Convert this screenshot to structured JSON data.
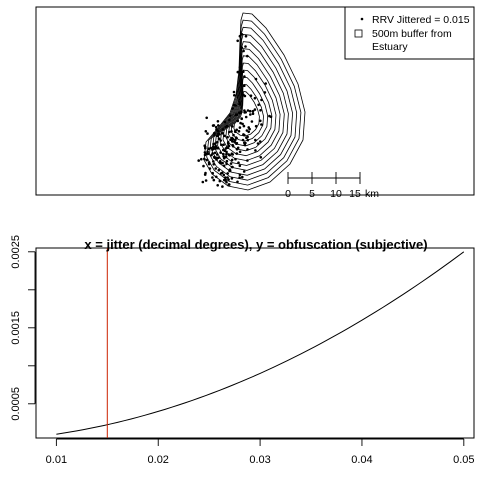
{
  "chart_data": [
    {
      "type": "scatter",
      "legend": {
        "position": "top-right",
        "entries": [
          {
            "symbol": "point",
            "label": "RRV Jittered = 0.015"
          },
          {
            "symbol": "square",
            "label_lines": [
              "500m buffer from",
              "Estuary"
            ]
          }
        ]
      },
      "scalebar": {
        "ticks": [
          "0",
          "5",
          "10",
          "15"
        ],
        "unit": "km"
      },
      "axes_shown": false
    },
    {
      "type": "line",
      "title": "x = jitter (decimal degrees), y = obfuscation (subjective)",
      "xlabel": "",
      "ylabel": "",
      "xlim": [
        0.008,
        0.051
      ],
      "ylim": [
        5e-05,
        0.00255
      ],
      "x_ticks": [
        0.01,
        0.02,
        0.03,
        0.04,
        0.05
      ],
      "x_tick_labels": [
        "0.01",
        "0.02",
        "0.03",
        "0.04",
        "0.05"
      ],
      "y_ticks": [
        0.0005,
        0.0015,
        0.0025
      ],
      "y_tick_labels": [
        "0.0005",
        "0.0015",
        "0.0025"
      ],
      "y_minor_ticks": [
        0.001,
        0.002
      ],
      "curve": {
        "formula": "x^2",
        "x_start": 0.01,
        "x_end": 0.05
      },
      "vline": {
        "x": 0.015,
        "color": "#cc2200"
      }
    }
  ]
}
